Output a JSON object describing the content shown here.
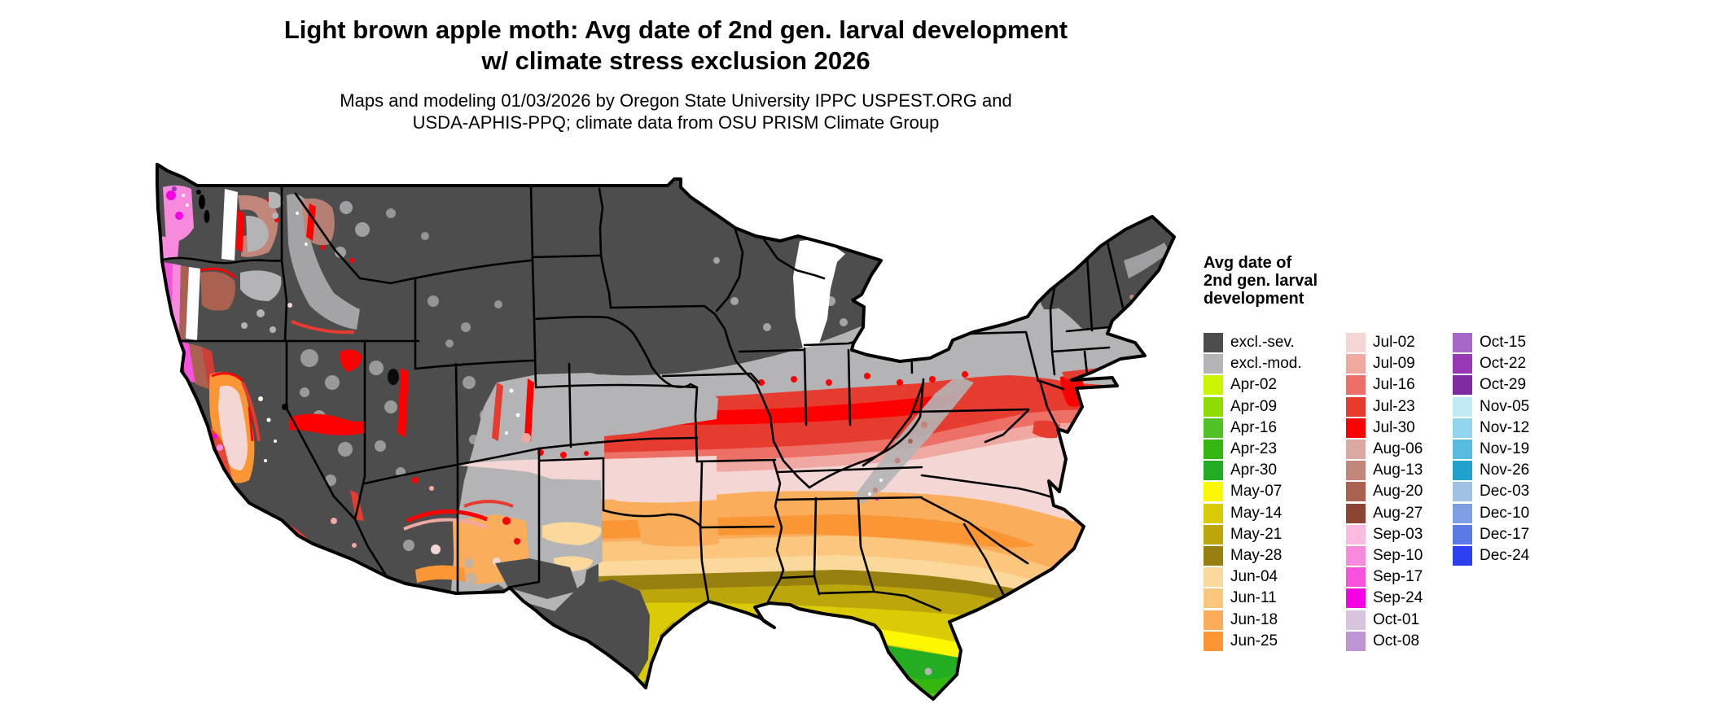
{
  "header": {
    "title_line1": "Light brown apple moth: Avg date of 2nd gen. larval development",
    "title_line2": "w/ climate stress exclusion 2026",
    "subtitle_line1": "Maps and modeling 01/03/2026 by Oregon State University IPPC USPEST.ORG and",
    "subtitle_line2": "USDA-APHIS-PPQ; climate data from OSU PRISM Climate Group"
  },
  "legend": {
    "title_line1": "Avg date of",
    "title_line2": "2nd gen. larval",
    "title_line3": "development",
    "columns": [
      [
        {
          "label": "excl.-sev.",
          "color": "#4D4D4D"
        },
        {
          "label": "excl.-mod.",
          "color": "#B4B4B6"
        },
        {
          "label": "Apr-02",
          "color": "#C8F500"
        },
        {
          "label": "Apr-09",
          "color": "#8FDB02"
        },
        {
          "label": "Apr-16",
          "color": "#50C226"
        },
        {
          "label": "Apr-23",
          "color": "#36B70F"
        },
        {
          "label": "Apr-30",
          "color": "#22AD22"
        },
        {
          "label": "May-07",
          "color": "#FCF800"
        },
        {
          "label": "May-14",
          "color": "#DACB06"
        },
        {
          "label": "May-21",
          "color": "#BBA70C"
        },
        {
          "label": "May-28",
          "color": "#988010"
        },
        {
          "label": "Jun-04",
          "color": "#FBD99C"
        },
        {
          "label": "Jun-11",
          "color": "#FBC67E"
        },
        {
          "label": "Jun-18",
          "color": "#FAAD5A"
        },
        {
          "label": "Jun-25",
          "color": "#FA9634"
        }
      ],
      [
        {
          "label": "Jul-02",
          "color": "#F4D7D5"
        },
        {
          "label": "Jul-09",
          "color": "#F0A8A2"
        },
        {
          "label": "Jul-16",
          "color": "#EC7066"
        },
        {
          "label": "Jul-23",
          "color": "#E63C30"
        },
        {
          "label": "Jul-30",
          "color": "#FE0000"
        },
        {
          "label": "Aug-06",
          "color": "#DAAAA2"
        },
        {
          "label": "Aug-13",
          "color": "#C28579"
        },
        {
          "label": "Aug-20",
          "color": "#AA6150"
        },
        {
          "label": "Aug-27",
          "color": "#8C4533"
        },
        {
          "label": "Sep-03",
          "color": "#FBBADF"
        },
        {
          "label": "Sep-10",
          "color": "#F88ADE"
        },
        {
          "label": "Sep-17",
          "color": "#F752DE"
        },
        {
          "label": "Sep-24",
          "color": "#F502E2"
        },
        {
          "label": "Oct-01",
          "color": "#D9C3DF"
        },
        {
          "label": "Oct-08",
          "color": "#BF94D2"
        }
      ],
      [
        {
          "label": "Oct-15",
          "color": "#A767C9"
        },
        {
          "label": "Oct-22",
          "color": "#9838B4"
        },
        {
          "label": "Oct-29",
          "color": "#7E2C9F"
        },
        {
          "label": "Nov-05",
          "color": "#BFEBF5"
        },
        {
          "label": "Nov-12",
          "color": "#90D5ED"
        },
        {
          "label": "Nov-19",
          "color": "#57BDE0"
        },
        {
          "label": "Nov-26",
          "color": "#21A2CD"
        },
        {
          "label": "Dec-03",
          "color": "#A0C2E2"
        },
        {
          "label": "Dec-10",
          "color": "#7E9FE3"
        },
        {
          "label": "Dec-17",
          "color": "#5C7AE6"
        },
        {
          "label": "Dec-24",
          "color": "#2C40F2"
        }
      ]
    ]
  },
  "map_colors": {
    "state_border": "#000000",
    "water_bodies": "#000000",
    "no_data": "#FFFFFF",
    "page_background": "#FFFFFF"
  }
}
